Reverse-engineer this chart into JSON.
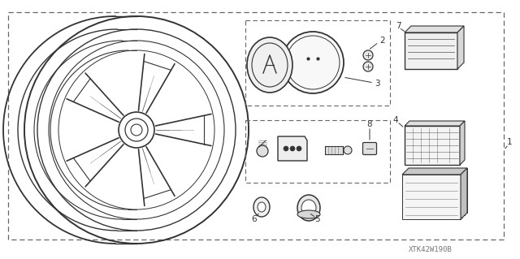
{
  "bg_color": "#ffffff",
  "dashed_color": "#666666",
  "line_color": "#333333",
  "text_color": "#333333",
  "watermark": "XTK42W190B",
  "label_fontsize": 7.5,
  "wm_fontsize": 6.5
}
